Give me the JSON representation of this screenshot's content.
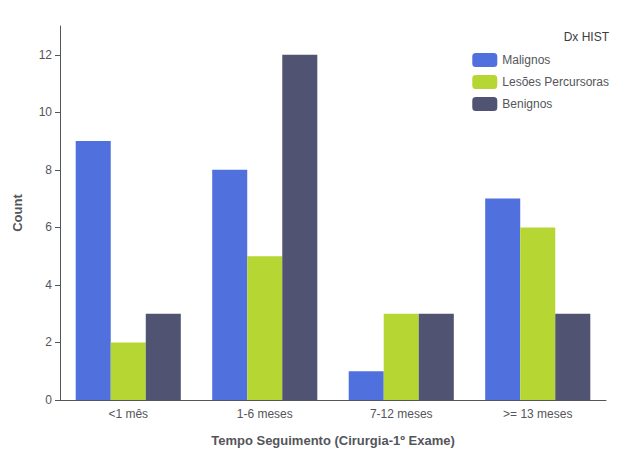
{
  "chart_data": {
    "type": "bar",
    "xlabel": "Tempo Seguimento (Cirurgia-1º Exame)",
    "ylabel": "Count",
    "legend_title": "Dx HIST",
    "categories": [
      "<1 mês",
      "1-6 meses",
      "7-12 meses",
      ">= 13 meses"
    ],
    "series": [
      {
        "name": "Malignos",
        "values": [
          9,
          8,
          1,
          7
        ]
      },
      {
        "name": "Lesões Percursoras",
        "values": [
          2,
          5,
          3,
          6
        ]
      },
      {
        "name": "Benignos",
        "values": [
          3,
          12,
          3,
          3
        ]
      }
    ],
    "ylim": [
      0,
      13
    ],
    "yticks": [
      0,
      2,
      4,
      6,
      8,
      10,
      12
    ],
    "grid": false,
    "legend": "upper right"
  }
}
